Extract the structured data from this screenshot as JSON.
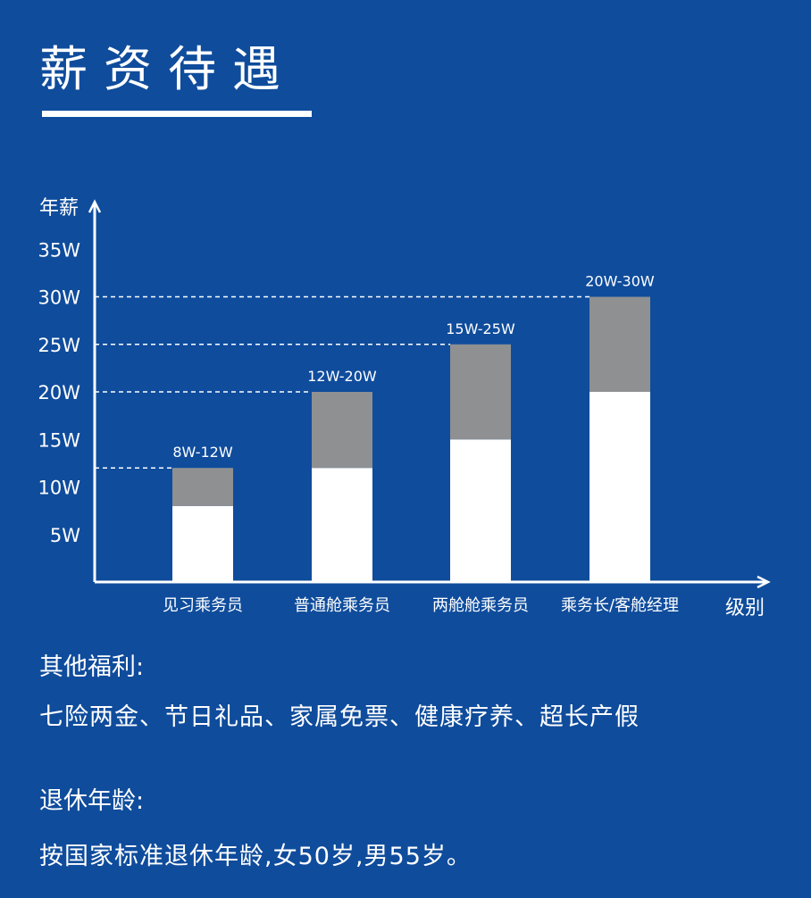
{
  "title": "薪资待遇",
  "colors": {
    "background": "#0f4c9c",
    "base_bar": "#ffffff",
    "range_bar": "#8e9092",
    "axis": "#ffffff"
  },
  "chart_data": {
    "type": "bar",
    "stacked": true,
    "ylabel": "年薪",
    "xlabel": "级别",
    "categories": [
      "见习乘务员",
      "普通舱乘务员",
      "两舱舱乘务员",
      "乘务长/客舱经理"
    ],
    "series": [
      {
        "values": [
          8,
          12,
          15,
          20
        ]
      },
      {
        "values": [
          4,
          8,
          10,
          10
        ]
      }
    ],
    "totals": [
      12,
      20,
      25,
      30
    ],
    "data_labels": [
      "8W-12W",
      "12W-20W",
      "15W-25W",
      "20W-30W"
    ],
    "y_ticks": [
      {
        "value": 5,
        "label": "5W"
      },
      {
        "value": 10,
        "label": "10W"
      },
      {
        "value": 15,
        "label": "15W"
      },
      {
        "value": 20,
        "label": "20W"
      },
      {
        "value": 25,
        "label": "25W"
      },
      {
        "value": 30,
        "label": "30W"
      },
      {
        "value": 35,
        "label": "35W"
      }
    ],
    "ylim": [
      0,
      40
    ],
    "grid": false,
    "reference_lines": "dashed lines from y-axis to each bar top"
  },
  "benefits": {
    "label": "其他福利:",
    "text": "七险两金、节日礼品、家属免票、健康疗养、超长产假"
  },
  "retirement": {
    "label": "退休年龄:",
    "text": "按国家标准退休年龄,女50岁,男55岁。"
  }
}
